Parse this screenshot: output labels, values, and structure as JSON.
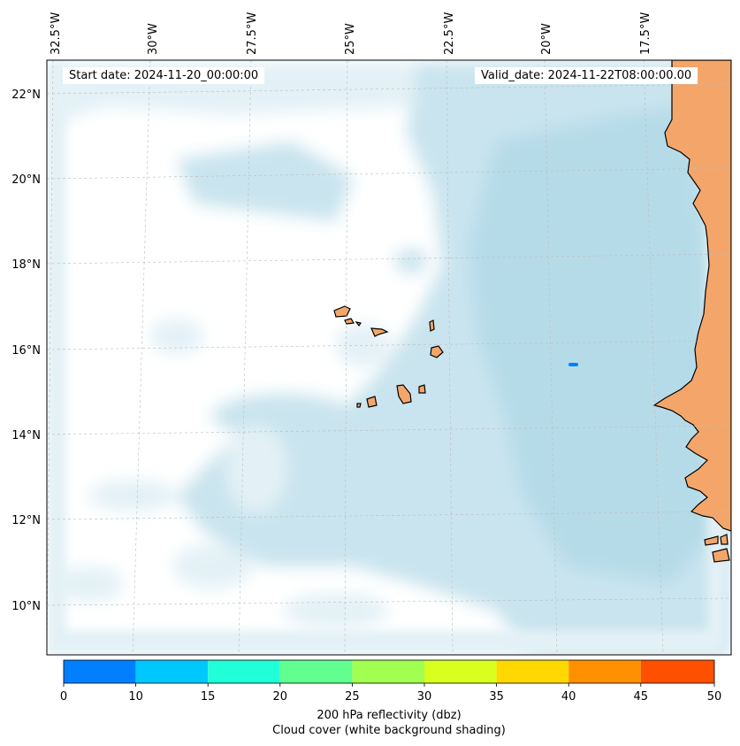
{
  "map": {
    "top_axis_labels": [
      "32.5°W",
      "30°W",
      "27.5°W",
      "25°W",
      "22.5°W",
      "20°W",
      "17.5°W"
    ],
    "left_axis_labels": [
      "22°N",
      "20°N",
      "18°N",
      "16°N",
      "14°N",
      "12°N",
      "10°N"
    ],
    "start_date": "Start date: 2024-11-20_00:00:00",
    "valid_date": "Valid_date: 2024-11-22T08:00:00.00",
    "colors": {
      "land": "#f4a66a",
      "cloud_light": "#e3f1f6",
      "cloud_mid": "#c9e4ee",
      "cloud_dense": "#b6dbe8",
      "grid": "#bbbbbb",
      "coast": "#000000",
      "reflectivity_blob": "#0080ff"
    }
  },
  "colorbar": {
    "ticks": [
      "0",
      "10",
      "15",
      "20",
      "25",
      "30",
      "35",
      "40",
      "45",
      "50"
    ],
    "colors": [
      "#0080ff",
      "#00c8ff",
      "#20ffd8",
      "#60ff90",
      "#a0ff50",
      "#d8ff20",
      "#ffd800",
      "#ff9000",
      "#ff5000"
    ],
    "label_line1": "200 hPa reflectivity (dbz)",
    "label_line2": "Cloud cover (white background shading)"
  }
}
